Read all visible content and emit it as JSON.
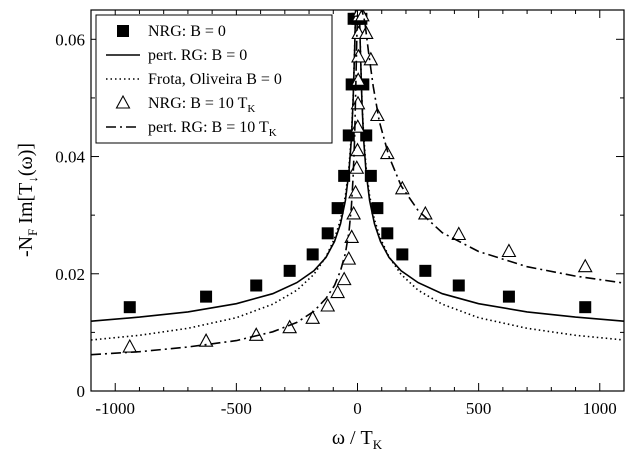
{
  "chart_data": {
    "type": "line",
    "xlabel": "ω / T",
    "xlabel_sub": "K",
    "ylabel": "-N",
    "ylabel_sub": "F",
    "ylabel_rest": " Im[T",
    "ylabel_sub2": "↓",
    "ylabel_end": "(ω)]",
    "xlim": [
      -1100,
      1100
    ],
    "ylim": [
      0,
      0.065
    ],
    "xticks": [
      -1000,
      -500,
      0,
      500,
      1000
    ],
    "yticks": [
      0,
      0.02,
      0.04,
      0.06
    ],
    "xticklabels": [
      "-1000",
      "-500",
      "0",
      "500",
      "1000"
    ],
    "yticklabels": [
      "0",
      "0.02",
      "0.04",
      "0.06"
    ],
    "grid": false,
    "legend_position": "top-left",
    "series": [
      {
        "name": "NRG: B = 0",
        "kind": "markers",
        "marker": "filled-square",
        "points": [
          [
            -940,
            0.0143
          ],
          [
            -625,
            0.0161
          ],
          [
            -418,
            0.018
          ],
          [
            -280,
            0.0205
          ],
          [
            -185,
            0.0233
          ],
          [
            -123,
            0.0269
          ],
          [
            -82,
            0.0312
          ],
          [
            -55,
            0.0367
          ],
          [
            -36,
            0.0436
          ],
          [
            -24,
            0.0523
          ],
          [
            -16,
            0.0635
          ],
          [
            0,
            0.0635
          ],
          [
            16,
            0.0635
          ],
          [
            24,
            0.0523
          ],
          [
            36,
            0.0436
          ],
          [
            55,
            0.0367
          ],
          [
            82,
            0.0312
          ],
          [
            123,
            0.0269
          ],
          [
            185,
            0.0233
          ],
          [
            280,
            0.0205
          ],
          [
            418,
            0.018
          ],
          [
            625,
            0.0161
          ],
          [
            940,
            0.0143
          ]
        ]
      },
      {
        "name": "pert. RG: B = 0",
        "kind": "line",
        "dash": "solid",
        "points": [
          [
            -1100,
            0.0119
          ],
          [
            -900,
            0.0126
          ],
          [
            -700,
            0.0135
          ],
          [
            -500,
            0.0149
          ],
          [
            -350,
            0.0166
          ],
          [
            -250,
            0.0185
          ],
          [
            -180,
            0.0205
          ],
          [
            -130,
            0.0228
          ],
          [
            -95,
            0.0255
          ],
          [
            -70,
            0.0285
          ],
          [
            -50,
            0.0325
          ],
          [
            -35,
            0.0375
          ],
          [
            -25,
            0.043
          ],
          [
            -18,
            0.0495
          ],
          [
            -12,
            0.058
          ],
          [
            -8,
            0.065
          ],
          [
            8,
            0.065
          ],
          [
            12,
            0.058
          ],
          [
            18,
            0.0495
          ],
          [
            25,
            0.043
          ],
          [
            35,
            0.0375
          ],
          [
            50,
            0.0325
          ],
          [
            70,
            0.0285
          ],
          [
            95,
            0.0255
          ],
          [
            130,
            0.0228
          ],
          [
            180,
            0.0205
          ],
          [
            250,
            0.0185
          ],
          [
            350,
            0.0166
          ],
          [
            500,
            0.0149
          ],
          [
            700,
            0.0135
          ],
          [
            900,
            0.0126
          ],
          [
            1100,
            0.0119
          ]
        ]
      },
      {
        "name": "Frota, Oliveira B = 0",
        "kind": "line",
        "dash": "dotted",
        "points": [
          [
            -1100,
            0.0087
          ],
          [
            -900,
            0.0095
          ],
          [
            -700,
            0.0107
          ],
          [
            -500,
            0.0125
          ],
          [
            -350,
            0.0148
          ],
          [
            -250,
            0.0172
          ],
          [
            -180,
            0.0199
          ],
          [
            -130,
            0.0229
          ],
          [
            -95,
            0.026
          ],
          [
            -70,
            0.0292
          ],
          [
            -50,
            0.0333
          ],
          [
            -35,
            0.0383
          ],
          [
            -25,
            0.0437
          ],
          [
            -18,
            0.05
          ],
          [
            -12,
            0.0582
          ],
          [
            -8,
            0.065
          ],
          [
            8,
            0.065
          ],
          [
            12,
            0.0582
          ],
          [
            18,
            0.05
          ],
          [
            25,
            0.0437
          ],
          [
            35,
            0.0383
          ],
          [
            50,
            0.0333
          ],
          [
            70,
            0.0292
          ],
          [
            95,
            0.026
          ],
          [
            130,
            0.0229
          ],
          [
            180,
            0.0199
          ],
          [
            250,
            0.0172
          ],
          [
            350,
            0.0148
          ],
          [
            500,
            0.0125
          ],
          [
            700,
            0.0107
          ],
          [
            900,
            0.0095
          ],
          [
            1100,
            0.0087
          ]
        ]
      },
      {
        "name": "NRG: B = 10 T",
        "name_sub": "K",
        "kind": "markers",
        "marker": "open-triangle",
        "points": [
          [
            -940,
            0.0075
          ],
          [
            -625,
            0.0085
          ],
          [
            -418,
            0.0095
          ],
          [
            -280,
            0.0108
          ],
          [
            -185,
            0.0124
          ],
          [
            -123,
            0.0145
          ],
          [
            -82,
            0.0168
          ],
          [
            -55,
            0.019
          ],
          [
            -36,
            0.0225
          ],
          [
            -24,
            0.0262
          ],
          [
            -16,
            0.0302
          ],
          [
            -8,
            0.0338
          ],
          [
            -3,
            0.038
          ],
          [
            0,
            0.041
          ],
          [
            1,
            0.045
          ],
          [
            2,
            0.049
          ],
          [
            3,
            0.053
          ],
          [
            4,
            0.057
          ],
          [
            5,
            0.061
          ],
          [
            6,
            0.064
          ],
          [
            10,
            0.0648
          ],
          [
            20,
            0.064
          ],
          [
            36,
            0.061
          ],
          [
            55,
            0.0565
          ],
          [
            82,
            0.047
          ],
          [
            123,
            0.0405
          ],
          [
            185,
            0.0345
          ],
          [
            280,
            0.0302
          ],
          [
            418,
            0.0267
          ],
          [
            625,
            0.0238
          ],
          [
            940,
            0.0212
          ]
        ]
      },
      {
        "name": "pert. RG: B = 10 T",
        "name_sub": "K",
        "kind": "line",
        "dash": "dash-dot",
        "points": [
          [
            -1100,
            0.0062
          ],
          [
            -900,
            0.0067
          ],
          [
            -700,
            0.0075
          ],
          [
            -500,
            0.0086
          ],
          [
            -350,
            0.0101
          ],
          [
            -250,
            0.0117
          ],
          [
            -180,
            0.0136
          ],
          [
            -130,
            0.0158
          ],
          [
            -95,
            0.018
          ],
          [
            -70,
            0.0205
          ],
          [
            -50,
            0.0235
          ],
          [
            -35,
            0.0272
          ],
          [
            -25,
            0.0315
          ],
          [
            -18,
            0.0365
          ],
          [
            -12,
            0.043
          ],
          [
            -7,
            0.052
          ],
          [
            -3,
            0.06
          ],
          [
            0,
            0.065
          ],
          [
            18,
            0.065
          ],
          [
            30,
            0.063
          ],
          [
            45,
            0.058
          ],
          [
            65,
            0.052
          ],
          [
            90,
            0.046
          ],
          [
            130,
            0.04
          ],
          [
            180,
            0.035
          ],
          [
            250,
            0.0308
          ],
          [
            350,
            0.027
          ],
          [
            500,
            0.0238
          ],
          [
            700,
            0.0212
          ],
          [
            900,
            0.0196
          ],
          [
            1100,
            0.0184
          ]
        ]
      }
    ]
  }
}
